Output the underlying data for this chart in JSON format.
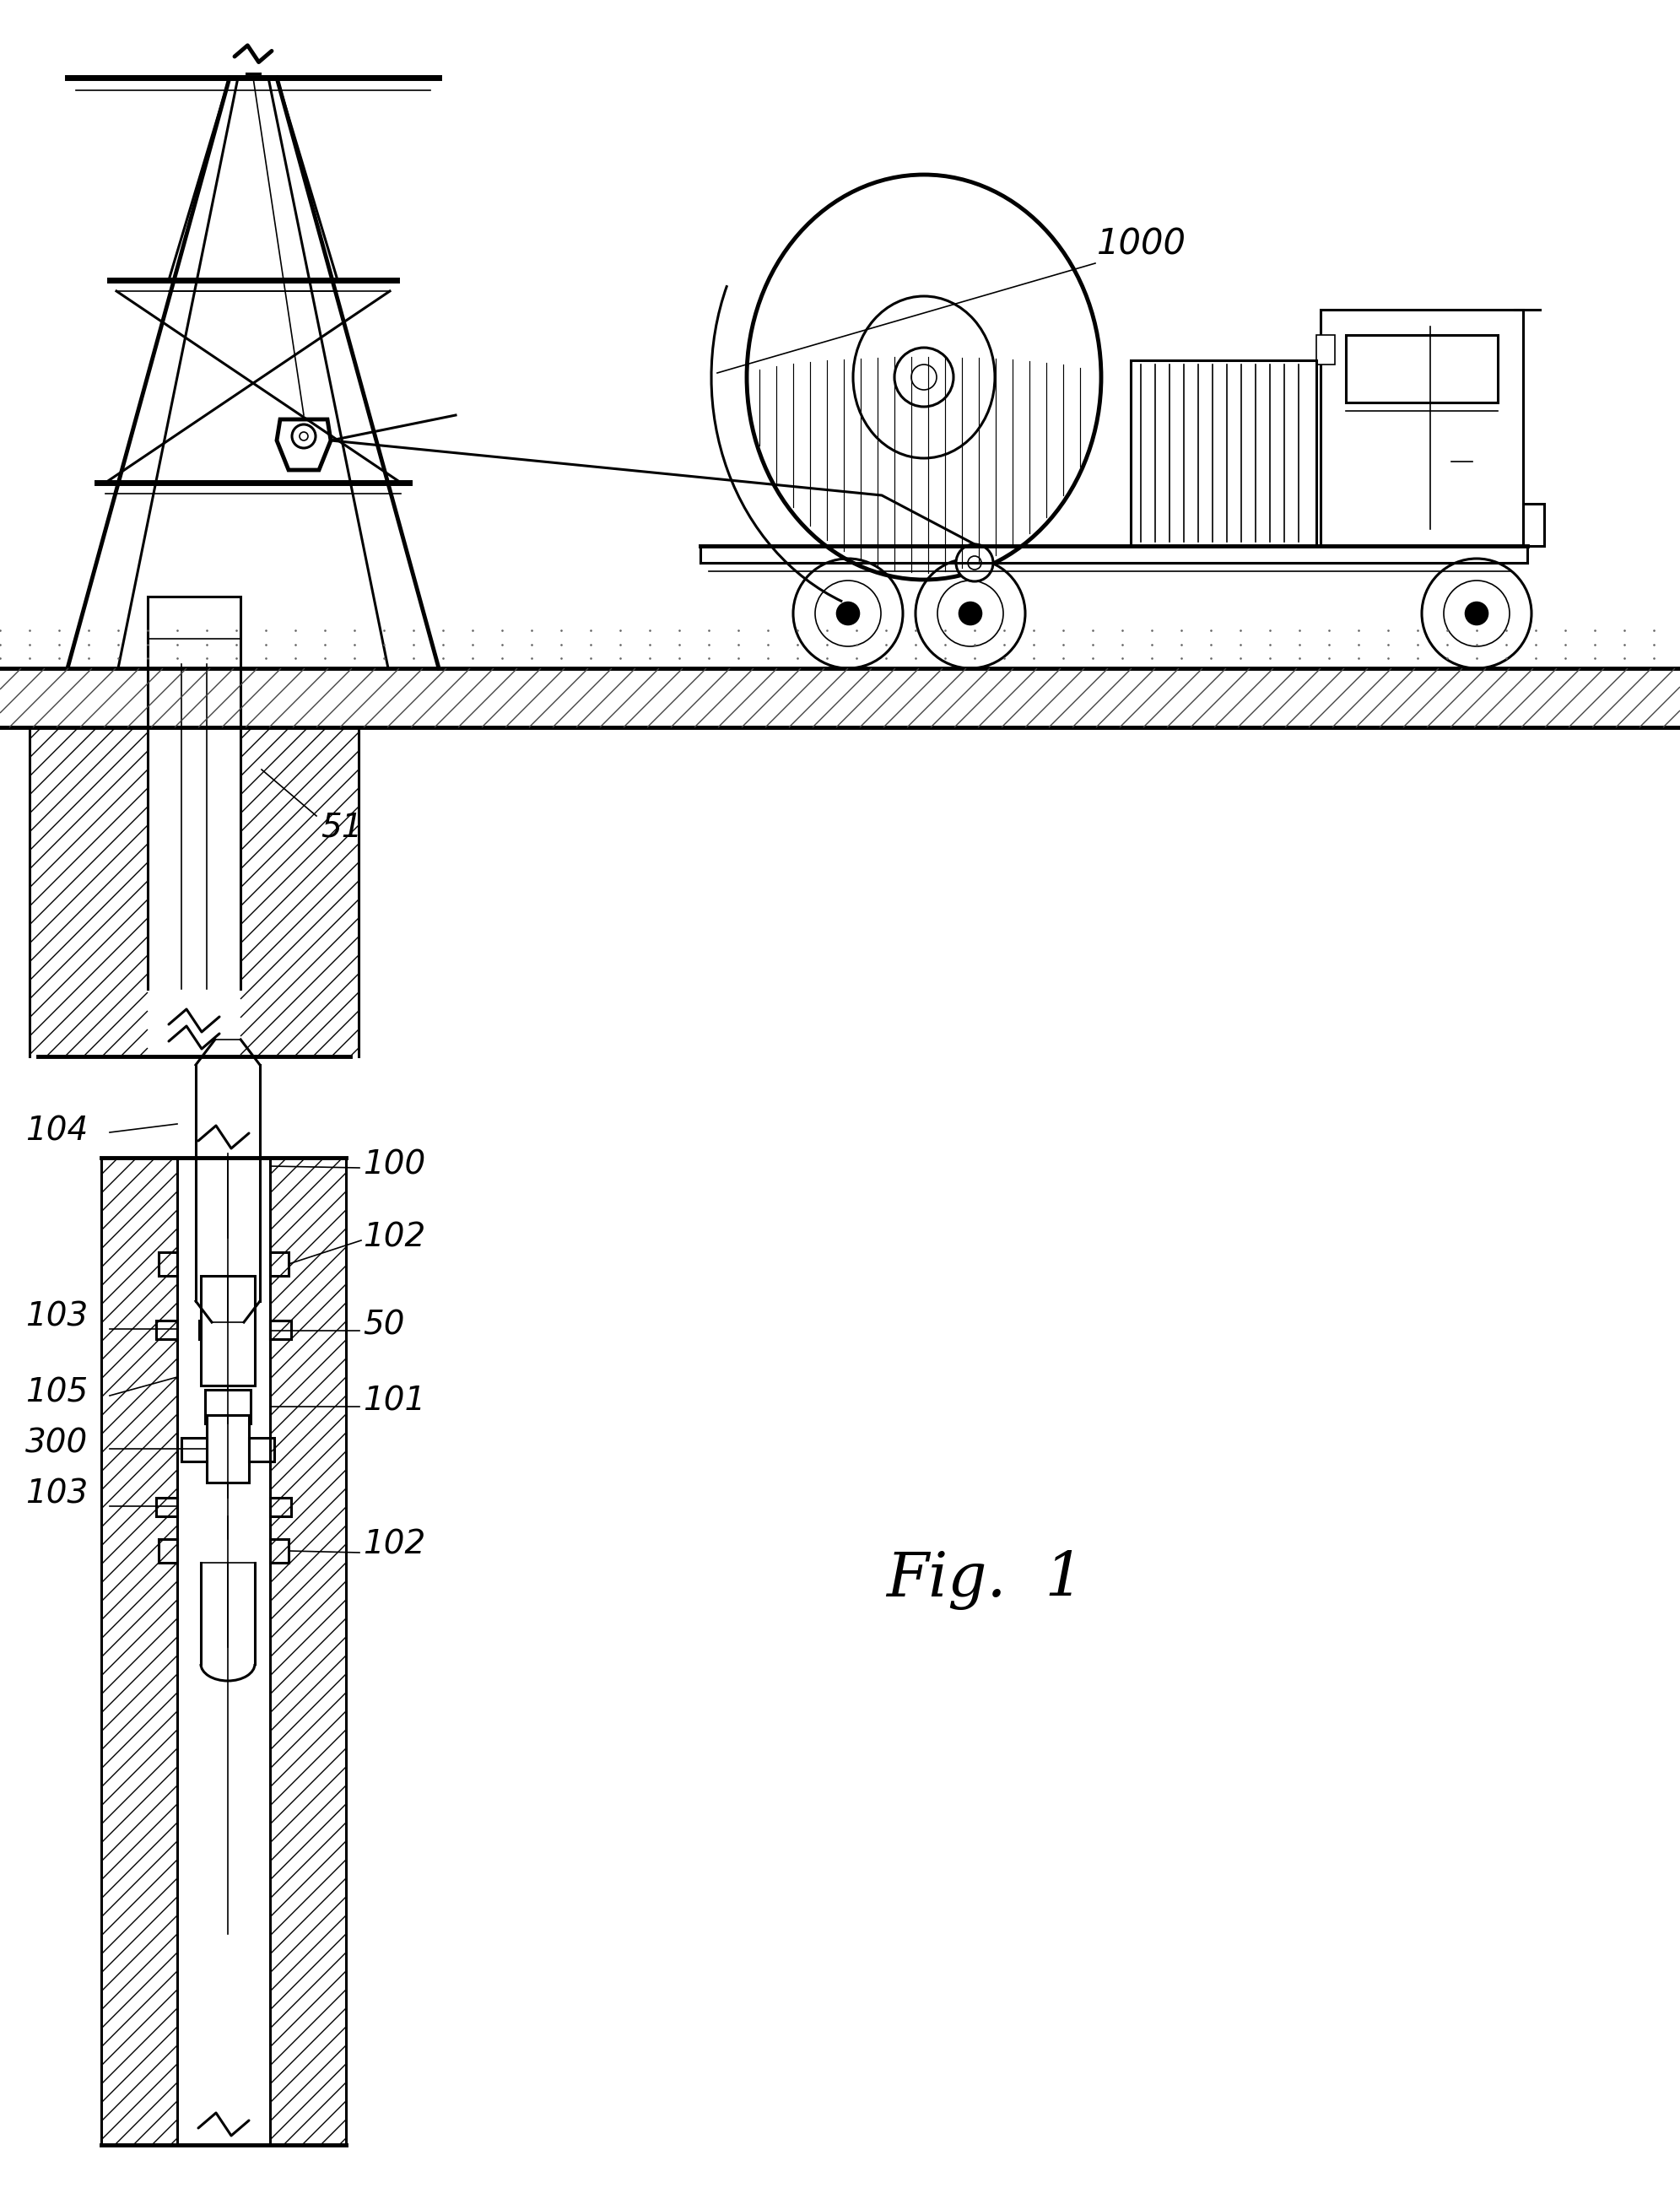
{
  "bg_color": "#ffffff",
  "line_color": "#000000",
  "fig_label": "Fig.  1",
  "label_1000": "1000",
  "label_51": "51",
  "label_102a": "102",
  "label_104": "104",
  "label_100": "100",
  "label_103a": "103",
  "label_50": "50",
  "label_105": "105",
  "label_101": "101",
  "label_300": "300",
  "label_102b": "102",
  "label_103b": "103"
}
